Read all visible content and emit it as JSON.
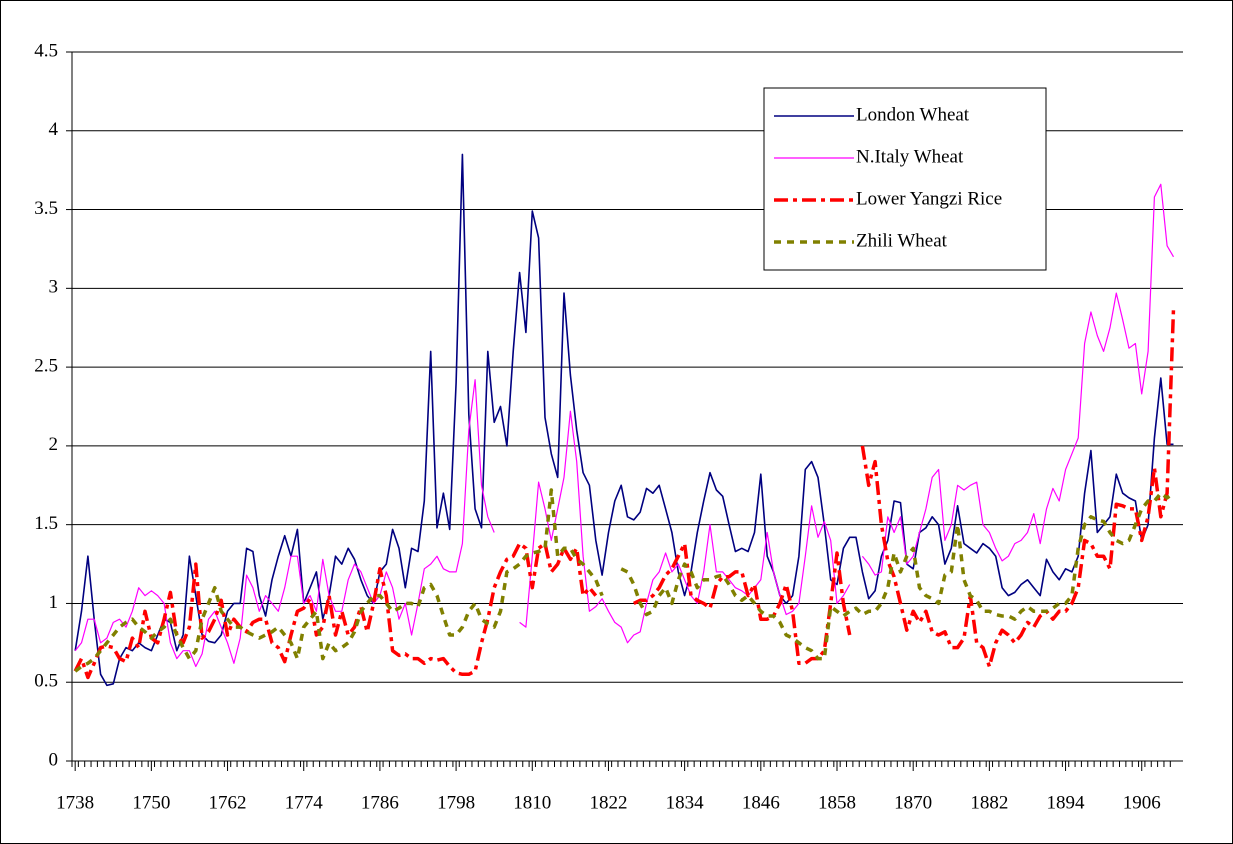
{
  "chart_data": {
    "type": "line",
    "x": [
      1738,
      1739,
      1740,
      1741,
      1742,
      1743,
      1744,
      1745,
      1746,
      1747,
      1748,
      1749,
      1750,
      1751,
      1752,
      1753,
      1754,
      1755,
      1756,
      1757,
      1758,
      1759,
      1760,
      1761,
      1762,
      1763,
      1764,
      1765,
      1766,
      1767,
      1768,
      1769,
      1770,
      1771,
      1772,
      1773,
      1774,
      1775,
      1776,
      1777,
      1778,
      1779,
      1780,
      1781,
      1782,
      1783,
      1784,
      1785,
      1786,
      1787,
      1788,
      1789,
      1790,
      1791,
      1792,
      1793,
      1794,
      1795,
      1796,
      1797,
      1798,
      1799,
      1800,
      1801,
      1802,
      1803,
      1804,
      1805,
      1806,
      1807,
      1808,
      1809,
      1810,
      1811,
      1812,
      1813,
      1814,
      1815,
      1816,
      1817,
      1818,
      1819,
      1820,
      1821,
      1822,
      1823,
      1824,
      1825,
      1826,
      1827,
      1828,
      1829,
      1830,
      1831,
      1832,
      1833,
      1834,
      1835,
      1836,
      1837,
      1838,
      1839,
      1840,
      1841,
      1842,
      1843,
      1844,
      1845,
      1846,
      1847,
      1848,
      1849,
      1850,
      1851,
      1852,
      1853,
      1854,
      1855,
      1856,
      1857,
      1858,
      1859,
      1860,
      1861,
      1862,
      1863,
      1864,
      1865,
      1866,
      1867,
      1868,
      1869,
      1870,
      1871,
      1872,
      1873,
      1874,
      1875,
      1876,
      1877,
      1878,
      1879,
      1880,
      1881,
      1882,
      1883,
      1884,
      1885,
      1886,
      1887,
      1888,
      1889,
      1890,
      1891,
      1892,
      1893,
      1894,
      1895,
      1896,
      1897,
      1898,
      1899,
      1900,
      1901,
      1902,
      1903,
      1904,
      1905,
      1906,
      1907,
      1908,
      1909,
      1910,
      1911
    ],
    "xlim": [
      1737.5,
      1912.5
    ],
    "xticks": [
      1738,
      1750,
      1762,
      1774,
      1786,
      1798,
      1810,
      1822,
      1834,
      1846,
      1858,
      1870,
      1882,
      1894,
      1906
    ],
    "ylim": [
      0,
      4.5
    ],
    "yticks": [
      0,
      0.5,
      1,
      1.5,
      2,
      2.5,
      3,
      3.5,
      4,
      4.5
    ],
    "grid": true,
    "legend": "upper right",
    "series": [
      {
        "name": "London Wheat",
        "color": "#000080",
        "dash": "solid",
        "values": [
          0.7,
          0.95,
          1.3,
          0.9,
          0.55,
          0.48,
          0.49,
          0.65,
          0.72,
          0.7,
          0.75,
          0.72,
          0.7,
          0.8,
          0.9,
          0.88,
          0.7,
          0.8,
          1.3,
          1.05,
          0.8,
          0.76,
          0.75,
          0.8,
          0.95,
          1.0,
          1.0,
          1.35,
          1.33,
          1.05,
          0.92,
          1.15,
          1.3,
          1.43,
          1.3,
          1.47,
          1.0,
          1.1,
          1.2,
          0.9,
          1.05,
          1.3,
          1.25,
          1.35,
          1.28,
          1.15,
          1.05,
          1.0,
          1.2,
          1.25,
          1.47,
          1.35,
          1.1,
          1.35,
          1.33,
          1.65,
          2.6,
          1.48,
          1.7,
          1.47,
          2.4,
          3.85,
          2.2,
          1.6,
          1.48,
          2.6,
          2.15,
          2.25,
          2.0,
          2.6,
          3.1,
          2.72,
          3.49,
          3.32,
          2.18,
          1.95,
          1.8,
          2.97,
          2.45,
          2.1,
          1.83,
          1.75,
          1.4,
          1.18,
          1.45,
          1.65,
          1.75,
          1.55,
          1.53,
          1.58,
          1.73,
          1.7,
          1.75,
          1.6,
          1.45,
          1.2,
          1.05,
          1.2,
          1.45,
          1.65,
          1.83,
          1.72,
          1.68,
          1.5,
          1.33,
          1.35,
          1.33,
          1.45,
          1.82,
          1.3,
          1.2,
          1.05,
          1.0,
          1.05,
          1.3,
          1.85,
          1.9,
          1.8,
          1.5,
          1.15,
          1.12,
          1.35,
          1.42,
          1.42,
          1.2,
          1.03,
          1.08,
          1.3,
          1.4,
          1.65,
          1.64,
          1.25,
          1.22,
          1.45,
          1.48,
          1.55,
          1.5,
          1.25,
          1.35,
          1.62,
          1.38,
          1.35,
          1.32,
          1.38,
          1.35,
          1.3,
          1.1,
          1.05,
          1.07,
          1.12,
          1.15,
          1.1,
          1.05,
          1.28,
          1.2,
          1.15,
          1.22,
          1.2,
          1.3,
          1.7,
          1.97,
          1.45,
          1.5,
          1.55,
          1.82,
          1.7,
          1.67,
          1.65,
          1.4,
          1.5,
          2.05,
          2.43,
          2.01,
          2.01
        ]
      },
      {
        "name": "N.Italy Wheat",
        "color": "#ff00ff",
        "dash": "solid",
        "values": [
          0.7,
          0.75,
          0.9,
          0.9,
          0.75,
          0.78,
          0.88,
          0.9,
          0.85,
          0.95,
          1.1,
          1.05,
          1.08,
          1.05,
          1.0,
          0.75,
          0.65,
          0.7,
          0.7,
          0.6,
          0.68,
          0.9,
          0.95,
          0.85,
          0.75,
          0.62,
          0.78,
          1.18,
          1.1,
          0.95,
          1.05,
          1.0,
          0.95,
          1.1,
          1.3,
          1.3,
          1.0,
          1.05,
          0.95,
          1.28,
          1.05,
          0.95,
          0.95,
          1.15,
          1.25,
          1.2,
          1.1,
          1.0,
          1.05,
          1.2,
          1.1,
          0.9,
          1.0,
          0.8,
          1.0,
          1.22,
          1.25,
          1.3,
          1.22,
          1.2,
          1.2,
          1.38,
          2.1,
          2.42,
          1.75,
          1.55,
          1.45,
          null,
          null,
          null,
          0.88,
          0.85,
          1.3,
          1.77,
          1.6,
          1.4,
          1.6,
          1.8,
          2.22,
          1.9,
          1.3,
          0.95,
          0.98,
          1.03,
          0.95,
          0.88,
          0.85,
          0.75,
          0.8,
          0.82,
          1.0,
          1.15,
          1.2,
          1.32,
          1.2,
          1.25,
          1.15,
          1.05,
          1.0,
          1.2,
          1.5,
          1.2,
          1.2,
          1.15,
          1.1,
          1.08,
          1.05,
          1.1,
          1.15,
          1.45,
          1.2,
          1.05,
          0.93,
          0.95,
          1.0,
          1.3,
          1.62,
          1.42,
          1.52,
          1.4,
          1.0,
          1.05,
          1.12,
          null,
          1.3,
          1.25,
          1.18,
          1.2,
          1.55,
          1.45,
          1.55,
          1.25,
          1.3,
          1.45,
          1.6,
          1.8,
          1.85,
          1.4,
          1.5,
          1.75,
          1.72,
          1.75,
          1.77,
          1.5,
          1.45,
          1.35,
          1.27,
          1.3,
          1.38,
          1.4,
          1.45,
          1.57,
          1.38,
          1.6,
          1.73,
          1.65,
          1.85,
          1.95,
          2.05,
          2.65,
          2.85,
          2.7,
          2.6,
          2.75,
          2.97,
          2.8,
          2.62,
          2.65,
          2.33,
          2.6,
          3.58,
          3.66,
          3.27,
          3.2
        ]
      },
      {
        "name": "Lower Yangzi Rice",
        "color": "#ff0000",
        "dash": "dash-dot",
        "values": [
          0.57,
          0.65,
          0.53,
          0.62,
          0.72,
          0.73,
          0.72,
          0.65,
          0.63,
          0.78,
          0.72,
          0.95,
          0.78,
          0.75,
          0.9,
          1.07,
          0.8,
          0.75,
          0.85,
          1.25,
          0.78,
          0.82,
          0.9,
          1.02,
          0.8,
          0.9,
          0.85,
          0.82,
          0.88,
          0.9,
          0.9,
          0.75,
          0.72,
          0.63,
          0.8,
          0.95,
          0.97,
          1.03,
          0.8,
          0.85,
          1.05,
          0.8,
          0.95,
          0.8,
          0.85,
          0.98,
          0.82,
          1.0,
          1.22,
          1.05,
          0.7,
          0.67,
          0.68,
          0.65,
          0.65,
          0.62,
          0.65,
          0.64,
          0.65,
          0.6,
          0.56,
          0.55,
          0.55,
          0.57,
          0.75,
          0.9,
          1.1,
          1.2,
          1.28,
          1.3,
          1.38,
          1.35,
          1.1,
          1.35,
          1.38,
          1.2,
          1.25,
          1.35,
          1.28,
          1.35,
          1.05,
          1.1,
          1.05,
          null,
          null,
          null,
          null,
          null,
          1.0,
          1.02,
          1.02,
          1.05,
          1.1,
          1.18,
          1.22,
          1.3,
          1.38,
          1.05,
          1.02,
          1.0,
          0.97,
          1.12,
          1.17,
          1.17,
          1.2,
          1.2,
          1.05,
          1.12,
          0.9,
          0.9,
          0.92,
          1.0,
          1.12,
          0.95,
          0.62,
          0.62,
          0.65,
          0.65,
          0.7,
          1.0,
          1.32,
          1.0,
          0.8,
          null,
          2.0,
          1.75,
          1.9,
          1.5,
          1.27,
          1.17,
          1.0,
          0.83,
          0.95,
          0.88,
          0.95,
          0.82,
          0.8,
          0.82,
          0.72,
          0.72,
          0.78,
          1.05,
          0.75,
          0.72,
          0.6,
          0.75,
          0.83,
          0.8,
          0.75,
          0.8,
          0.88,
          0.85,
          0.92,
          0.95,
          0.9,
          0.95,
          0.95,
          1.0,
          1.1,
          1.4,
          1.38,
          1.3,
          1.3,
          1.22,
          1.63,
          1.62,
          1.6,
          1.6,
          1.4,
          1.55,
          1.86,
          1.55,
          1.7,
          2.87
        ]
      },
      {
        "name": "Zhili Wheat",
        "color": "#808000",
        "dash": "dash",
        "values": [
          0.57,
          0.6,
          0.62,
          0.65,
          0.7,
          0.75,
          0.8,
          0.85,
          0.88,
          0.9,
          0.85,
          0.82,
          0.78,
          0.82,
          0.85,
          0.9,
          0.8,
          0.72,
          0.65,
          0.7,
          0.9,
          1.0,
          1.1,
          0.95,
          0.9,
          0.85,
          0.85,
          0.82,
          0.8,
          0.78,
          0.8,
          0.82,
          0.85,
          0.8,
          0.75,
          0.65,
          0.85,
          0.9,
          0.95,
          0.65,
          0.75,
          0.7,
          0.72,
          0.75,
          0.82,
          0.95,
          1.0,
          1.05,
          1.05,
          1.0,
          0.95,
          0.97,
          1.0,
          1.0,
          0.98,
          1.1,
          1.12,
          1.05,
          0.92,
          0.8,
          0.8,
          0.85,
          0.95,
          1.0,
          0.9,
          0.87,
          0.85,
          0.95,
          1.2,
          1.22,
          1.25,
          1.3,
          1.32,
          1.33,
          1.35,
          1.72,
          1.3,
          1.35,
          1.35,
          1.28,
          1.25,
          1.2,
          1.15,
          1.05,
          null,
          null,
          1.22,
          1.2,
          1.12,
          1.0,
          0.93,
          0.95,
          1.05,
          1.1,
          1.0,
          1.15,
          1.25,
          1.2,
          1.1,
          1.15,
          1.15,
          1.17,
          1.18,
          1.12,
          1.05,
          1.02,
          1.05,
          1.0,
          0.95,
          0.92,
          0.92,
          0.88,
          0.8,
          0.78,
          0.75,
          0.72,
          0.7,
          0.65,
          0.65,
          0.98,
          0.95,
          0.92,
          0.95,
          0.97,
          0.93,
          0.95,
          0.95,
          1.0,
          1.1,
          1.32,
          1.2,
          1.3,
          1.35,
          1.1,
          1.05,
          1.03,
          1.0,
          1.18,
          1.2,
          1.5,
          1.15,
          1.05,
          1.02,
          0.95,
          0.95,
          0.93,
          0.92,
          0.92,
          0.9,
          0.95,
          0.98,
          0.95,
          0.95,
          0.95,
          0.97,
          1.0,
          1.0,
          1.05,
          1.35,
          1.5,
          1.55,
          1.53,
          1.52,
          1.45,
          1.4,
          1.38,
          1.4,
          1.5,
          1.6,
          1.65,
          1.65,
          1.7,
          1.67,
          1.7
        ]
      }
    ]
  }
}
